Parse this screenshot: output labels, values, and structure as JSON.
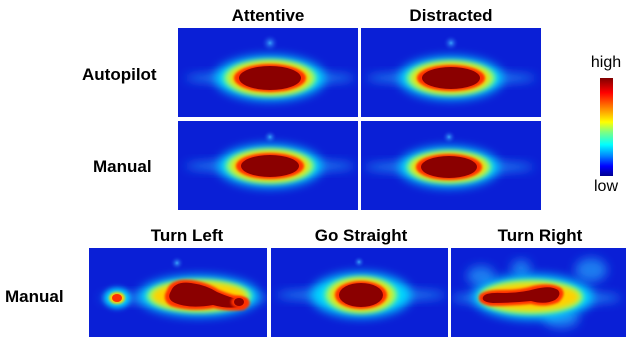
{
  "column_headers": {
    "attentive": "Attentive",
    "distracted": "Distracted",
    "turn_left": "Turn Left",
    "go_straight": "Go Straight",
    "turn_right": "Turn Right"
  },
  "row_labels": {
    "autopilot": "Autopilot",
    "manual_top": "Manual",
    "manual_bottom": "Manual"
  },
  "colorbar": {
    "high_label": "high",
    "low_label": "low",
    "colors": [
      "#7f0000",
      "#ff0000",
      "#ff8000",
      "#ffff00",
      "#80ff80",
      "#00ffff",
      "#0080ff",
      "#0000ff",
      "#00008f"
    ]
  },
  "background_color": "#0a1fd6"
}
